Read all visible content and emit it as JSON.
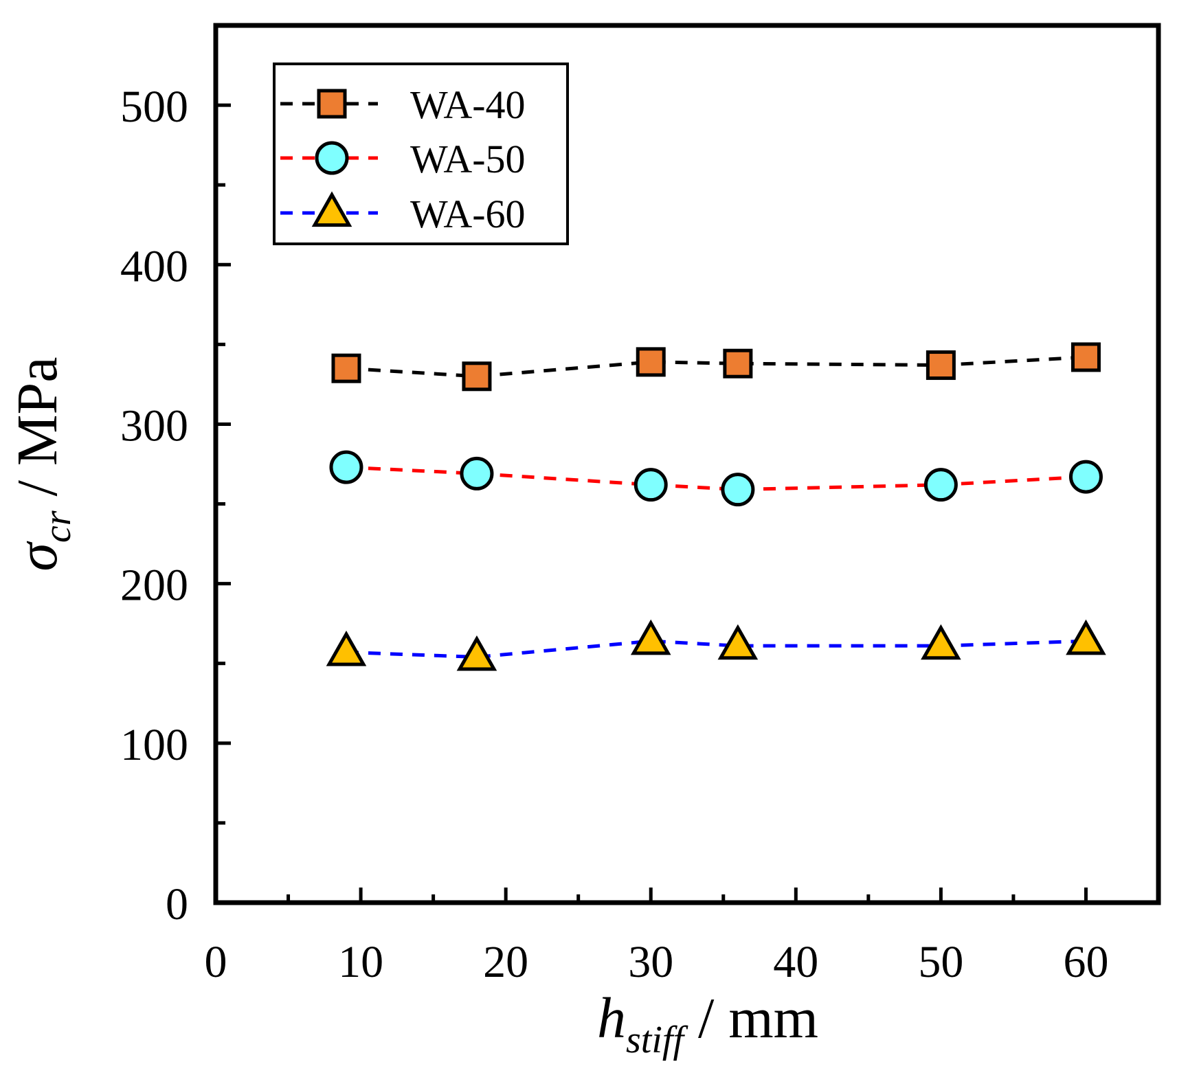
{
  "chart_data": {
    "type": "line",
    "xlabel": {
      "symbol": "h",
      "subscript": "stiff",
      "unit": " / mm"
    },
    "ylabel": {
      "symbol": "σ",
      "subscript": "cr",
      "unit": " / MPa"
    },
    "xlim": [
      0,
      65
    ],
    "ylim": [
      0,
      550
    ],
    "xticks": [
      0,
      10,
      20,
      30,
      40,
      50,
      60
    ],
    "xtick_labels": [
      "0",
      "10",
      "20",
      "30",
      "40",
      "50",
      "60"
    ],
    "yticks": [
      0,
      100,
      200,
      300,
      400,
      500
    ],
    "ytick_labels": [
      "0",
      "100",
      "200",
      "300",
      "400",
      "500"
    ],
    "grid": false,
    "legend_position": "top-left",
    "series": [
      {
        "name": "WA-40",
        "marker": "square",
        "line_color": "#000000",
        "marker_fill": "#ED7D31",
        "x": [
          9,
          18,
          30,
          36,
          50,
          60
        ],
        "y": [
          335,
          330,
          339,
          338,
          337,
          342
        ]
      },
      {
        "name": "WA-50",
        "marker": "circle",
        "line_color": "#FF0000",
        "marker_fill": "#7FFFFF",
        "x": [
          9,
          18,
          30,
          36,
          50,
          60
        ],
        "y": [
          273,
          269,
          262,
          259,
          262,
          267
        ]
      },
      {
        "name": "WA-60",
        "marker": "triangle",
        "line_color": "#0000FF",
        "marker_fill": "#FFC000",
        "x": [
          9,
          18,
          30,
          36,
          50,
          60
        ],
        "y": [
          157,
          154,
          164,
          161,
          161,
          164
        ]
      }
    ]
  }
}
